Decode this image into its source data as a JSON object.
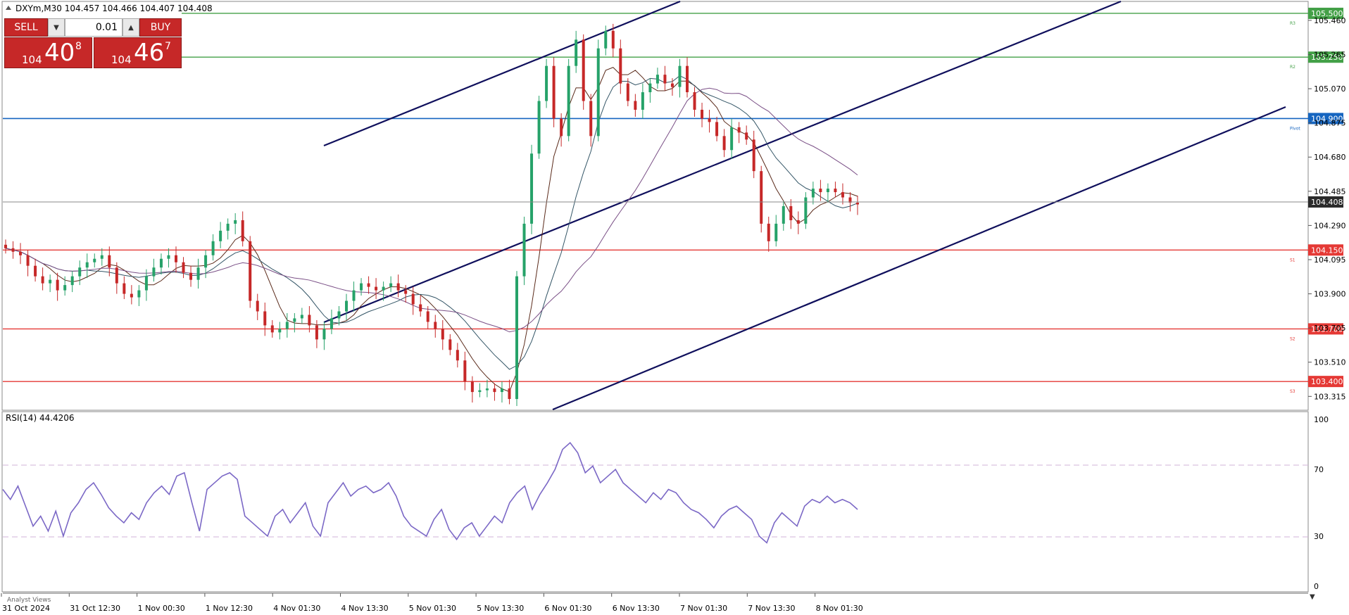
{
  "symbol_header": "DXYm,M30  104.457 104.466 104.407 104.408",
  "trade_panel": {
    "sell_label": "SELL",
    "buy_label": "BUY",
    "lot_value": "0.01",
    "sell_price": {
      "small": "104",
      "big": "40",
      "sup": "8"
    },
    "buy_price": {
      "small": "104",
      "big": "46",
      "sup": "7"
    }
  },
  "colors": {
    "bull": "#26a269",
    "bear": "#c62828",
    "trend": "#0f0f5c",
    "pivot": "#1565c0",
    "resistance": "#43a047",
    "support": "#e53935",
    "rsi": "#7b68c6"
  },
  "price_axis": {
    "ticks": [
      "105.460",
      "105.265",
      "105.070",
      "104.875",
      "104.680",
      "104.485",
      "104.290",
      "104.095",
      "103.900",
      "103.705",
      "103.510",
      "103.315"
    ],
    "current_price": "104.408"
  },
  "levels": [
    {
      "name": "R3",
      "price": 105.5,
      "label": "105.500",
      "tag": "R3",
      "kind": "resistance"
    },
    {
      "name": "R2",
      "price": 105.25,
      "label": "105.250",
      "tag": "R2",
      "kind": "resistance"
    },
    {
      "name": "Pivot",
      "price": 104.9,
      "label": "104.900",
      "tag": "Pivot",
      "kind": "pivot"
    },
    {
      "name": "S1",
      "price": 104.15,
      "label": "104.150",
      "tag": "S1",
      "kind": "support"
    },
    {
      "name": "S2",
      "price": 103.7,
      "label": "103.700",
      "tag": "S2",
      "kind": "support"
    },
    {
      "name": "S3",
      "price": 103.4,
      "label": "103.400",
      "tag": "S3",
      "kind": "support"
    }
  ],
  "rsi": {
    "label": "RSI(14) 44.4206",
    "ticks": [
      "100",
      "70",
      "30",
      "0"
    ],
    "values": [
      58,
      52,
      60,
      48,
      36,
      42,
      33,
      45,
      30,
      44,
      50,
      58,
      62,
      55,
      47,
      42,
      38,
      44,
      40,
      50,
      56,
      60,
      55,
      66,
      68,
      50,
      33,
      58,
      62,
      66,
      68,
      64,
      42,
      38,
      34,
      30,
      42,
      46,
      38,
      44,
      50,
      36,
      30,
      50,
      56,
      62,
      54,
      58,
      60,
      56,
      58,
      62,
      54,
      42,
      36,
      33,
      30,
      40,
      46,
      34,
      28,
      35,
      38,
      30,
      36,
      42,
      38,
      50,
      56,
      60,
      46,
      55,
      62,
      70,
      82,
      86,
      80,
      68,
      72,
      62,
      66,
      70,
      62,
      58,
      54,
      50,
      56,
      52,
      58,
      56,
      50,
      46,
      44,
      40,
      35,
      42,
      46,
      48,
      44,
      40,
      30,
      26,
      38,
      44,
      40,
      36,
      48,
      52,
      50,
      54,
      50,
      52,
      50,
      46
    ]
  },
  "time_axis": [
    "31 Oct 2024",
    "31 Oct 12:30",
    "1 Nov 00:30",
    "1 Nov 12:30",
    "4 Nov 01:30",
    "4 Nov 13:30",
    "5 Nov 01:30",
    "5 Nov 13:30",
    "6 Nov 01:30",
    "6 Nov 13:30",
    "7 Nov 01:30",
    "7 Nov 13:30",
    "8 Nov 01:30"
  ],
  "bottom_panel_label": "Analyst Views",
  "chart_data": {
    "type": "candlestick",
    "title": "DXYm,M30",
    "price_range": [
      103.24,
      105.56
    ],
    "closes": [
      104.16,
      104.14,
      104.12,
      104.06,
      104.0,
      103.96,
      103.98,
      103.92,
      103.95,
      104.0,
      104.05,
      104.08,
      104.1,
      104.12,
      104.05,
      103.96,
      103.9,
      103.88,
      103.92,
      104.0,
      104.05,
      104.1,
      104.12,
      104.08,
      104.02,
      103.98,
      104.05,
      104.12,
      104.2,
      104.26,
      104.3,
      104.32,
      104.2,
      103.86,
      103.8,
      103.72,
      103.68,
      103.7,
      103.74,
      103.76,
      103.78,
      103.72,
      103.64,
      103.7,
      103.76,
      103.8,
      103.86,
      103.92,
      103.96,
      103.94,
      103.92,
      103.94,
      103.96,
      103.92,
      103.9,
      103.84,
      103.8,
      103.74,
      103.7,
      103.64,
      103.58,
      103.52,
      103.4,
      103.34,
      103.35,
      103.36,
      103.34,
      103.36,
      103.3,
      104.0,
      104.3,
      104.7,
      105.0,
      105.2,
      104.9,
      104.8,
      105.2,
      105.35,
      105.0,
      104.8,
      105.3,
      105.4,
      105.3,
      105.1,
      105.0,
      104.95,
      105.05,
      105.1,
      105.15,
      105.1,
      105.08,
      105.2,
      105.05,
      104.95,
      104.9,
      104.88,
      104.8,
      104.72,
      104.85,
      104.82,
      104.78,
      104.6,
      104.3,
      104.2,
      104.3,
      104.4,
      104.32,
      104.3,
      104.45,
      104.5,
      104.48,
      104.5,
      104.48,
      104.45,
      104.42,
      104.41
    ]
  }
}
